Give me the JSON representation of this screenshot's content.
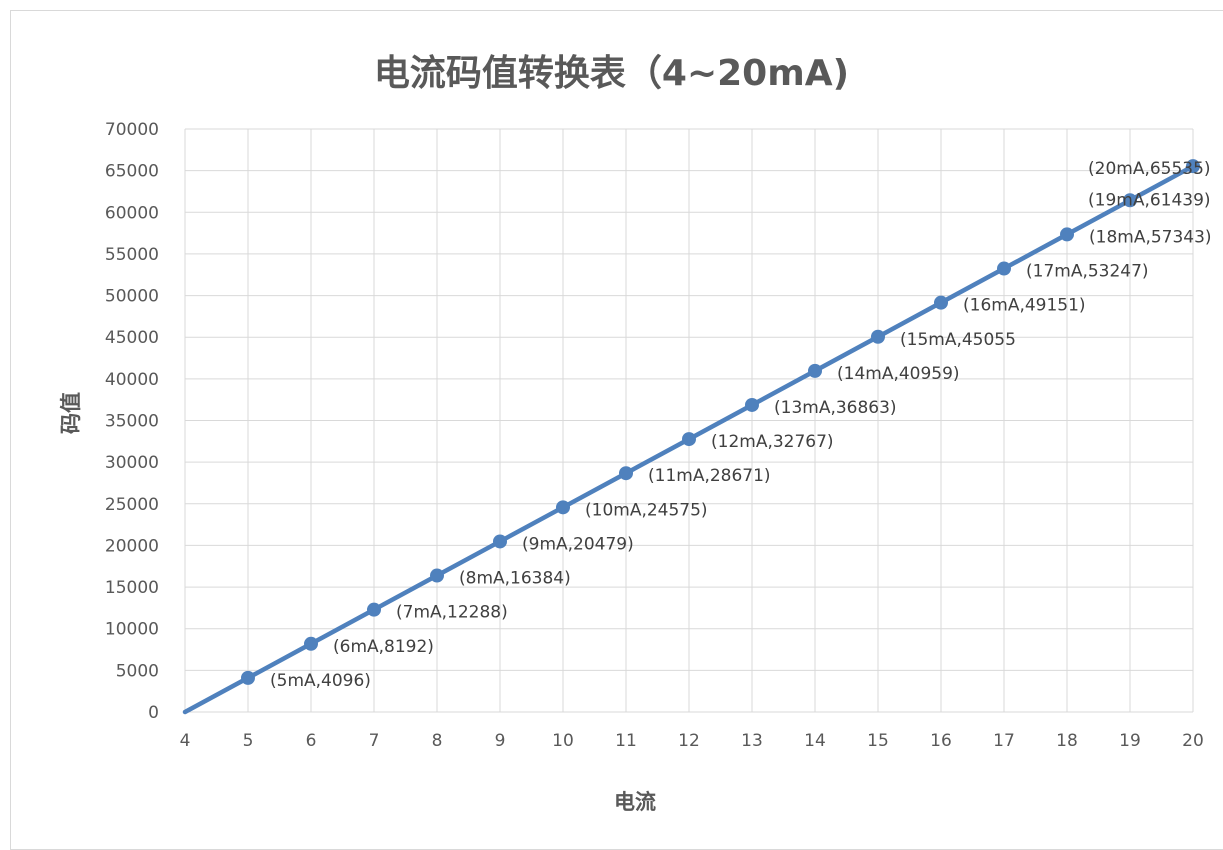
{
  "chart_data": {
    "type": "scatter",
    "title": "电流码值转换表（4~20mA)",
    "xlabel": "电流",
    "ylabel": "码值",
    "xlim": [
      4,
      20
    ],
    "ylim": [
      0,
      70000
    ],
    "x_ticks": [
      "4",
      "5",
      "6",
      "7",
      "8",
      "9",
      "10",
      "11",
      "12",
      "13",
      "14",
      "15",
      "16",
      "17",
      "18",
      "19",
      "20"
    ],
    "y_ticks": [
      "0",
      "5000",
      "10000",
      "15000",
      "20000",
      "25000",
      "30000",
      "35000",
      "40000",
      "45000",
      "50000",
      "55000",
      "60000",
      "65000",
      "70000"
    ],
    "grid": true,
    "color": "#4f81bd",
    "series": [
      {
        "points": [
          {
            "x": 4,
            "y": 0,
            "label": ""
          },
          {
            "x": 5,
            "y": 4096,
            "label": "(5mA,4096)"
          },
          {
            "x": 6,
            "y": 8192,
            "label": "(6mA,8192)"
          },
          {
            "x": 7,
            "y": 12288,
            "label": "(7mA,12288)"
          },
          {
            "x": 8,
            "y": 16384,
            "label": "(8mA,16384)"
          },
          {
            "x": 9,
            "y": 20479,
            "label": "(9mA,20479)"
          },
          {
            "x": 10,
            "y": 24575,
            "label": "(10mA,24575)"
          },
          {
            "x": 11,
            "y": 28671,
            "label": "(11mA,28671)"
          },
          {
            "x": 12,
            "y": 32767,
            "label": "(12mA,32767)"
          },
          {
            "x": 13,
            "y": 36863,
            "label": "(13mA,36863)"
          },
          {
            "x": 14,
            "y": 40959,
            "label": "(14mA,40959)"
          },
          {
            "x": 15,
            "y": 45055,
            "label": "(15mA,45055"
          },
          {
            "x": 16,
            "y": 49151,
            "label": "(16mA,49151)"
          },
          {
            "x": 17,
            "y": 53247,
            "label": "(17mA,53247)"
          },
          {
            "x": 18,
            "y": 57343,
            "label": "(18mA,57343)"
          },
          {
            "x": 19,
            "y": 61439,
            "label": "(19mA,61439)"
          },
          {
            "x": 20,
            "y": 65535,
            "label": "(20mA,65535)"
          }
        ]
      }
    ]
  }
}
